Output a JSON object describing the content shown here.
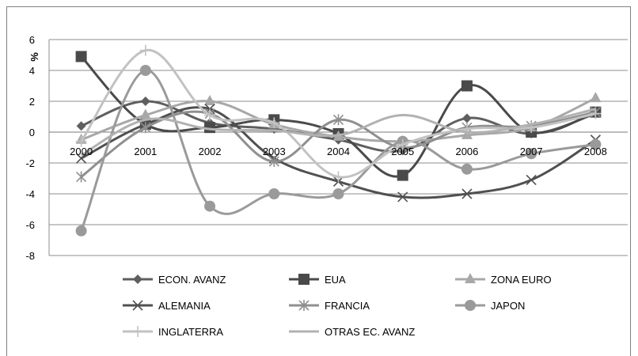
{
  "chart_data": {
    "type": "line",
    "title": "",
    "xlabel": "",
    "ylabel": "%",
    "ylim": [
      -8,
      6
    ],
    "yticks": [
      -8,
      -6,
      -4,
      -2,
      0,
      2,
      4,
      6
    ],
    "grid": true,
    "legend_position": "bottom",
    "categories": [
      "2000",
      "2001",
      "2002",
      "2003",
      "2004",
      "2005",
      "2006",
      "2007",
      "2008"
    ],
    "series": [
      {
        "name": "ECON. AVANZ",
        "marker": "diamond",
        "color": "#5f5f5f",
        "values": [
          0.4,
          2.0,
          0.6,
          0.2,
          -0.5,
          -1.2,
          0.9,
          -0.1,
          1.2
        ]
      },
      {
        "name": "EUA",
        "marker": "square",
        "color": "#4a4a4a",
        "values": [
          4.9,
          0.5,
          0.3,
          0.8,
          -0.1,
          -2.8,
          3.0,
          0.0,
          1.3
        ]
      },
      {
        "name": "ZONA EURO",
        "marker": "triangle",
        "color": "#a8a8a8",
        "values": [
          -0.5,
          1.1,
          2.0,
          0.5,
          -0.3,
          -0.6,
          -0.2,
          0.3,
          2.2
        ]
      },
      {
        "name": "ALEMANIA",
        "marker": "x",
        "color": "#505050",
        "values": [
          -1.7,
          0.5,
          1.5,
          -1.7,
          -3.2,
          -4.2,
          -4.0,
          -3.1,
          -0.5
        ]
      },
      {
        "name": "FRANCIA",
        "marker": "asterisk",
        "color": "#8f8f8f",
        "values": [
          -2.9,
          0.3,
          1.2,
          -1.9,
          0.8,
          -1.0,
          0.3,
          0.4,
          1.3
        ]
      },
      {
        "name": "JAPON",
        "marker": "circle",
        "color": "#9a9a9a",
        "values": [
          -6.4,
          4.0,
          -4.8,
          -4.0,
          -4.0,
          -0.6,
          -2.4,
          -1.4,
          -0.8
        ]
      },
      {
        "name": "INGLATERRA",
        "marker": "plus",
        "color": "#c2c2c2",
        "values": [
          -0.6,
          5.3,
          1.1,
          0.6,
          -2.9,
          -0.8,
          0.2,
          0.3,
          1.2
        ]
      },
      {
        "name": "OTRAS EC. AVANZ",
        "marker": "none",
        "color": "#b2b2b2",
        "values": [
          -1.5,
          0.8,
          0.2,
          0.1,
          -0.2,
          1.1,
          0.0,
          0.5,
          1.5
        ]
      }
    ]
  }
}
